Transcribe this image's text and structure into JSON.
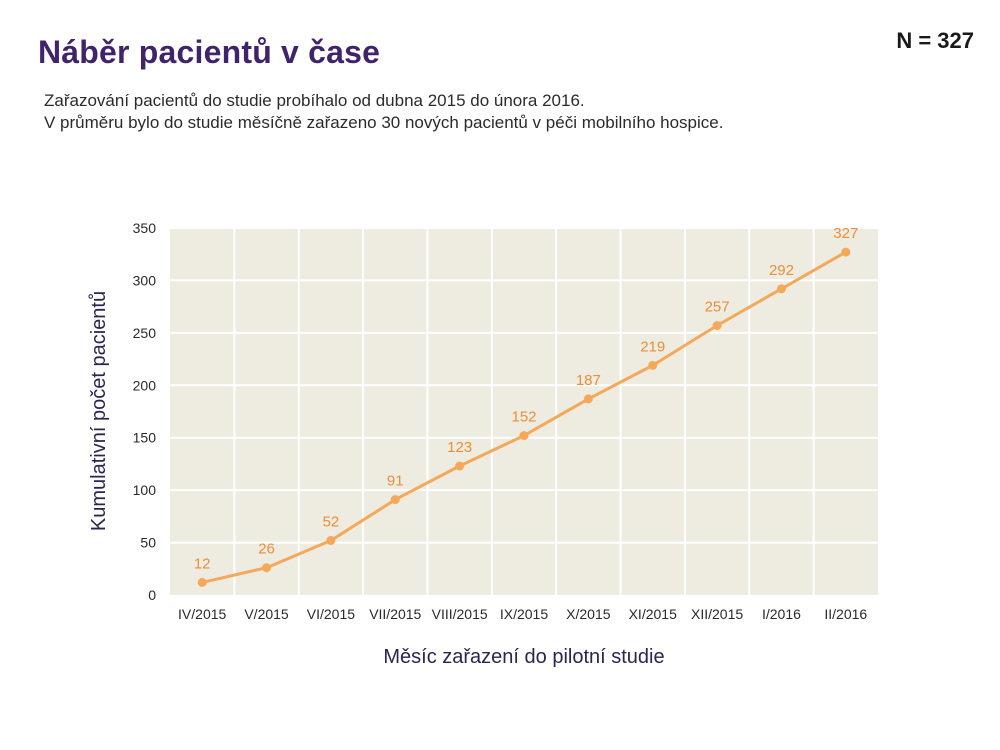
{
  "header": {
    "title": "Náběr pacientů v čase",
    "n_label": "N = 327",
    "subtitle_lines": [
      "Zařazování pacientů do studie probíhalo od dubna 2015 do února 2016.",
      "V průměru bylo do studie měsíčně zařazeno 30 nových pacientů v péči mobilního hospice."
    ]
  },
  "colors": {
    "title": "#40246b",
    "plot_background": "#eeebe0",
    "grid": "#ffffff",
    "line": "#f4a95a",
    "data_label": "#e8903a"
  },
  "chart_data": {
    "type": "line",
    "categories": [
      "IV/2015",
      "V/2015",
      "VI/2015",
      "VII/2015",
      "VIII/2015",
      "IX/2015",
      "X/2015",
      "XI/2015",
      "XII/2015",
      "I/2016",
      "II/2016"
    ],
    "series": [
      {
        "values": [
          12,
          26,
          52,
          91,
          123,
          152,
          187,
          219,
          257,
          292,
          327
        ]
      }
    ],
    "xlabel": "Měsíc zařazení do pilotní studie",
    "ylabel": "Kumulativní počet pacientů",
    "ylim": [
      0,
      350
    ],
    "yticks": [
      0,
      50,
      100,
      150,
      200,
      250,
      300,
      350
    ],
    "grid": true,
    "data_labels": true,
    "markers": true
  }
}
